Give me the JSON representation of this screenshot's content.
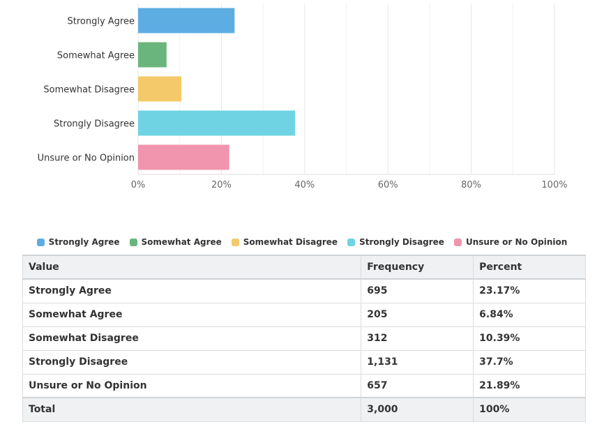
{
  "chart_data": {
    "type": "bar",
    "orientation": "horizontal",
    "categories": [
      "Strongly Agree",
      "Somewhat Agree",
      "Somewhat Disagree",
      "Strongly Disagree",
      "Unsure or No Opinion"
    ],
    "values": [
      23.17,
      6.84,
      10.39,
      37.7,
      21.89
    ],
    "colors": [
      "#5dade2",
      "#6ab57d",
      "#f4c96a",
      "#6fd3e4",
      "#f095ad"
    ],
    "xlim": [
      0,
      100
    ],
    "x_ticks": [
      "0%",
      "20%",
      "40%",
      "60%",
      "80%",
      "100%"
    ],
    "x_tick_values": [
      0,
      20,
      40,
      60,
      80,
      100
    ],
    "grid": true,
    "legend_position": "bottom"
  },
  "legend": [
    {
      "label": "Strongly Agree",
      "color": "#5dade2"
    },
    {
      "label": "Somewhat Agree",
      "color": "#6ab57d"
    },
    {
      "label": "Somewhat Disagree",
      "color": "#f4c96a"
    },
    {
      "label": "Strongly Disagree",
      "color": "#6fd3e4"
    },
    {
      "label": "Unsure or No Opinion",
      "color": "#f095ad"
    }
  ],
  "table": {
    "headers": [
      "Value",
      "Frequency",
      "Percent"
    ],
    "rows": [
      [
        "Strongly Agree",
        "695",
        "23.17%"
      ],
      [
        "Somewhat Agree",
        "205",
        "6.84%"
      ],
      [
        "Somewhat Disagree",
        "312",
        "10.39%"
      ],
      [
        "Strongly Disagree",
        "1,131",
        "37.7%"
      ],
      [
        "Unsure or No Opinion",
        "657",
        "21.89%"
      ]
    ],
    "total": [
      "Total",
      "3,000",
      "100%"
    ]
  }
}
